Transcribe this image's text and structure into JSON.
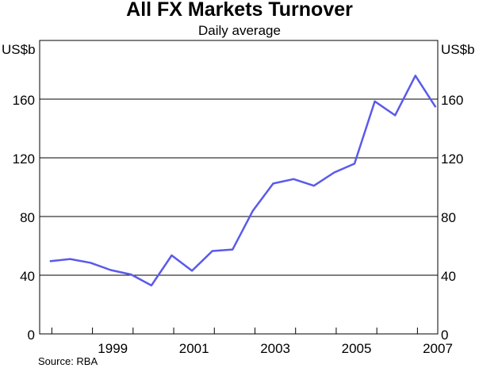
{
  "chart_data": {
    "type": "line",
    "title": "All FX Markets Turnover",
    "subtitle": "Daily average",
    "left_unit": "US$b",
    "right_unit": "US$b",
    "source": "Source: RBA",
    "ylim": [
      0,
      200
    ],
    "yticks": [
      0,
      40,
      80,
      120,
      160
    ],
    "xlim": [
      1997.7,
      2007.5
    ],
    "xticks": [
      1999,
      2001,
      2003,
      2005,
      2007
    ],
    "grid": "horizontal",
    "line_color": "#5a5aea",
    "series": [
      {
        "x": [
          1997.95,
          1998.45,
          1998.95,
          1999.45,
          1999.95,
          2000.45,
          2000.95,
          2001.45,
          2001.95,
          2002.45,
          2002.95,
          2003.45,
          2003.95,
          2004.45,
          2004.95,
          2005.45,
          2005.95,
          2006.45,
          2006.95,
          2007.45
        ],
        "values": [
          49.5,
          51,
          48.5,
          43.5,
          40.5,
          33,
          53.5,
          43,
          56.5,
          57.5,
          84,
          102.5,
          105.5,
          101,
          110,
          116,
          158.5,
          149,
          176,
          154.5
        ]
      }
    ]
  }
}
